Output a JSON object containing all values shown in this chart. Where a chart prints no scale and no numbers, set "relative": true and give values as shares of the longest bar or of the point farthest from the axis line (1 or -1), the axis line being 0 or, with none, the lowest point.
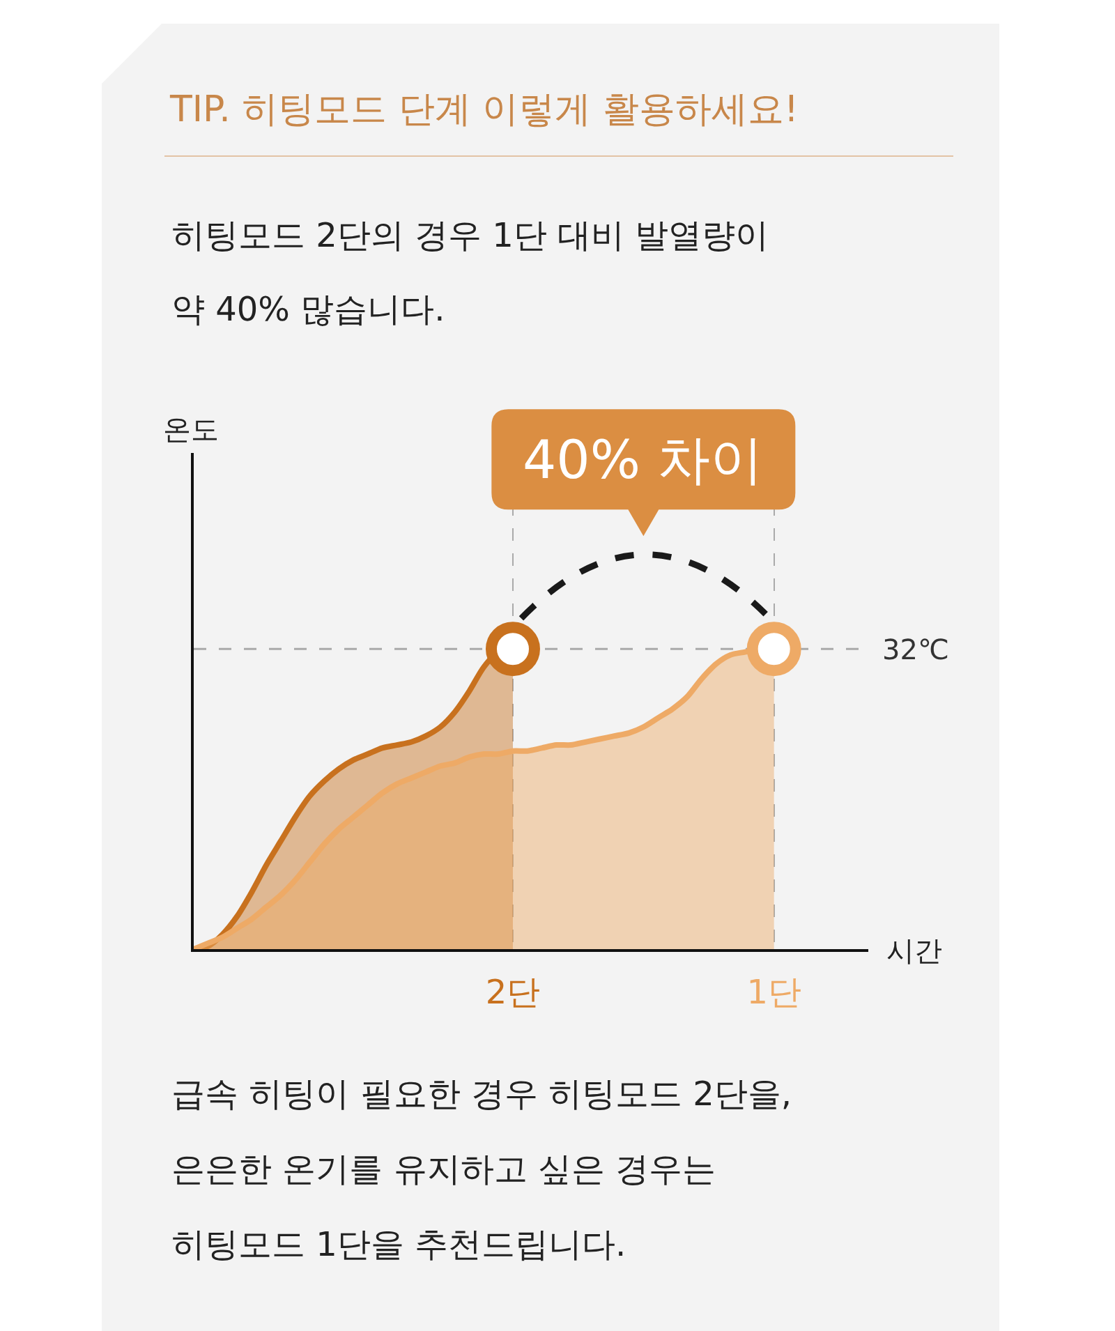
{
  "chart_data": {
    "type": "area",
    "title": "TIP. 히팅모드 단계 이렇게 활용하세요!",
    "subtitle": "히팅모드 2단의 경우 1단 대비 발열량이\n약 40% 많습니다.",
    "xlabel": "시간",
    "relative": true,
    "categories": [
      null,
      null,
      null,
      null,
      null,
      null,
      null,
      null,
      null,
      null,
      null,
      null,
      null,
      null,
      null,
      null,
      null,
      null,
      null,
      null,
      null,
      null,
      "2단",
      null,
      null,
      null,
      null,
      null,
      null,
      null,
      null,
      null,
      null,
      null,
      null,
      null,
      null,
      null,
      null,
      null,
      "1단",
      null,
      null,
      null,
      null,
      null,
      null
    ],
    "series": [
      {
        "color": "#c8711e",
        "values": [
          0,
          0.01,
          0.05,
          0.11,
          0.19,
          0.28,
          0.36,
          0.44,
          0.51,
          0.56,
          0.6,
          0.63,
          0.65,
          0.67,
          0.68,
          0.69,
          0.71,
          0.74,
          0.79,
          0.86,
          0.94,
          0.99,
          1,
          null,
          null,
          null,
          null,
          null,
          null,
          null,
          null,
          null,
          null,
          null,
          null,
          null,
          null,
          null,
          null,
          null,
          null,
          null,
          null,
          null,
          null,
          null,
          null
        ]
      },
      {
        "color": "#eeaa66",
        "values": [
          0,
          0.02,
          0.04,
          0.07,
          0.1,
          0.14,
          0.18,
          0.23,
          0.29,
          0.35,
          0.4,
          0.44,
          0.48,
          0.52,
          0.55,
          0.57,
          0.59,
          0.61,
          0.62,
          0.64,
          0.65,
          0.65,
          0.66,
          0.66,
          0.67,
          0.68,
          0.68,
          0.69,
          0.7,
          0.71,
          0.72,
          0.74,
          0.77,
          0.8,
          0.84,
          0.9,
          0.95,
          0.98,
          0.99,
          1,
          1,
          null,
          null,
          null,
          null,
          null,
          null
        ]
      },
      {
        "type": "scatter",
        "marker": "circle",
        "x": [
          "2단",
          "1단"
        ],
        "values": [
          1,
          1
        ],
        "colors": [
          "#c8711e",
          "#eeaa66"
        ]
      }
    ],
    "ref_lines": [
      {
        "axis": "y",
        "value": 1,
        "label": "32℃",
        "color": "#aaaaaa",
        "line_style": "dashed"
      }
    ],
    "grid": "x",
    "annotations": [
      "온도",
      "40% 차이",
      "급속 히팅이 필요한 경우 히팅모드 2단을,\n은은한 온기를 유지하고 싶은 경우는\n히팅모드 1단을 추천드립니다."
    ]
  }
}
